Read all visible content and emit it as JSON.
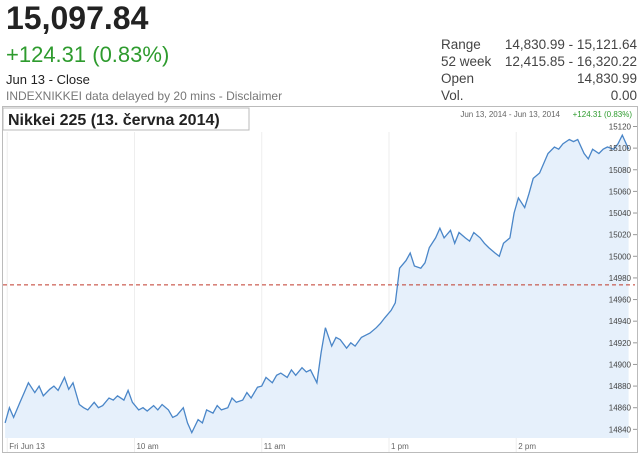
{
  "header": {
    "price": "15,097.84",
    "change": "+124.31 (0.83%)",
    "date": "Jun 13 - Close",
    "note": "INDEXNIKKEI data delayed by 20 mins - Disclaimer",
    "stats": [
      [
        "Range",
        "14,830.99 - 15,121.64"
      ],
      [
        "52 week",
        "12,415.85 - 16,320.22"
      ],
      [
        "Open",
        "14,830.99"
      ],
      [
        "Vol.",
        "0.00"
      ]
    ]
  },
  "chart_data": {
    "type": "line",
    "title": "Nikkei 225 (13. června 2014)",
    "range_label": "Jun 13, 2014 - Jun 13, 2014",
    "change_label": "+124.31 (0.83%)",
    "color": "#4a86c8",
    "fill": "#e6f0fb",
    "reference_line": 14973.53,
    "x": [
      -1,
      1,
      3,
      6,
      8,
      10,
      13,
      15,
      17,
      20,
      22,
      24,
      27,
      29,
      31,
      34,
      36,
      38,
      41,
      43,
      45,
      48,
      50,
      52,
      55,
      57,
      59,
      62,
      64,
      66,
      69,
      71,
      73,
      76,
      78,
      80,
      83,
      85,
      87,
      90,
      92,
      94,
      97,
      99,
      101,
      104,
      106,
      108,
      111,
      113,
      115,
      118,
      120,
      122,
      125,
      127,
      129,
      132,
      134,
      136,
      139,
      141,
      143,
      146,
      148,
      150,
      153,
      155,
      157,
      160,
      162,
      164,
      167,
      169,
      171,
      174,
      176,
      178,
      181,
      183,
      185,
      188,
      190,
      192,
      195,
      197,
      199,
      202,
      204,
      206,
      209,
      211,
      213,
      216,
      218,
      220,
      223,
      225,
      227,
      230,
      232,
      234,
      237,
      239,
      241,
      244,
      246,
      248,
      251,
      253,
      255,
      258,
      260,
      262,
      265,
      267,
      269,
      272,
      274,
      276,
      279,
      281,
      283,
      286,
      288,
      290,
      293
    ],
    "values": [
      14846,
      14860,
      14851,
      14865,
      14874,
      14883,
      14874,
      14880,
      14871,
      14877,
      14880,
      14876,
      14888,
      14877,
      14883,
      14863,
      14860,
      14858,
      14865,
      14860,
      14862,
      14869,
      14867,
      14871,
      14867,
      14876,
      14865,
      14858,
      14860,
      14857,
      14862,
      14858,
      14863,
      14858,
      14851,
      14853,
      14860,
      14846,
      14837,
      14849,
      14846,
      14858,
      14855,
      14862,
      14858,
      14860,
      14869,
      14865,
      14867,
      14874,
      14869,
      14879,
      14880,
      14888,
      14883,
      14890,
      14892,
      14888,
      14895,
      14890,
      14897,
      14893,
      14895,
      14883,
      14911,
      14934,
      14917,
      14925,
      14923,
      14915,
      14920,
      14917,
      14925,
      14927,
      14929,
      14934,
      14938,
      14943,
      14950,
      14957,
      14989,
      14996,
      15003,
      14991,
      14989,
      14994,
      15008,
      15017,
      15026,
      15017,
      15024,
      15012,
      15022,
      15017,
      15014,
      15022,
      15017,
      15012,
      15008,
      15003,
      15000,
      15012,
      15017,
      15040,
      15054,
      15045,
      15058,
      15072,
      15077,
      15086,
      15095,
      15101,
      15099,
      15104,
      15108,
      15106,
      15108,
      15095,
      15090,
      15099,
      15095,
      15099,
      15101,
      15099,
      15104,
      15112,
      15099
    ],
    "xlim": [
      -2,
      296
    ],
    "xticks": [
      {
        "value": 0,
        "label": "Fri Jun 13"
      },
      {
        "value": 60,
        "label": "10 am"
      },
      {
        "value": 120,
        "label": "11 am"
      },
      {
        "value": 180,
        "label": "1 pm"
      },
      {
        "value": 240,
        "label": "2 pm"
      }
    ],
    "ylim": [
      14832,
      15126
    ],
    "yticks": [
      14840,
      14860,
      14880,
      14900,
      14920,
      14940,
      14960,
      14980,
      15000,
      15020,
      15040,
      15060,
      15080,
      15100,
      15120
    ]
  }
}
